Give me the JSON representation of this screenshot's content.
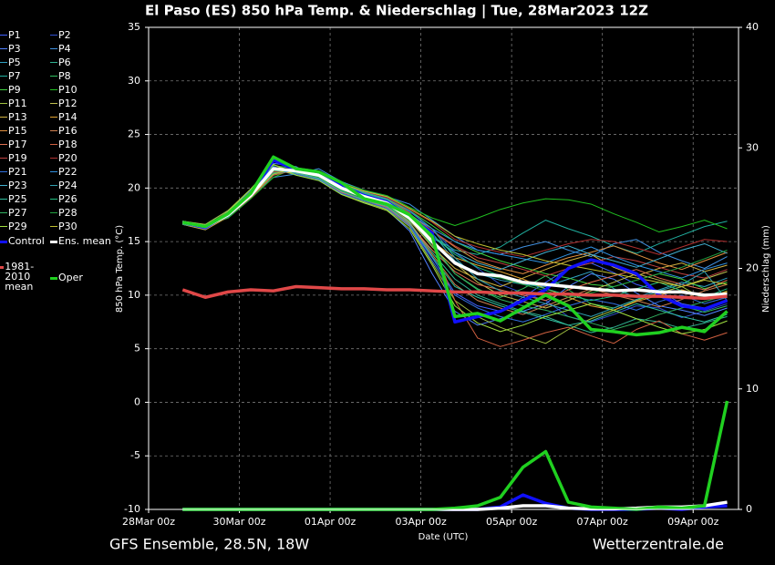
{
  "chart_data": {
    "type": "line",
    "title": "El Paso  (ES)  850 hPa Temp. & Niederschlag | Tue, 28Mar2023 12Z",
    "ylabel": "850 hPa Temp. (°C)",
    "y2label": "Niederschlag (mm)",
    "xlabel": "Date (UTC)",
    "footer_left": "GFS Ensemble, 28.5N, 18W",
    "footer_right": "Wetterzentrale.de",
    "grid": true,
    "xlim": [
      0,
      13
    ],
    "ylim": [
      -10,
      35
    ],
    "y2lim": [
      0,
      40
    ],
    "xticks": [
      {
        "value": 0,
        "label": "28Mar 00z"
      },
      {
        "value": 2,
        "label": "30Mar 00z"
      },
      {
        "value": 4,
        "label": "01Apr 00z"
      },
      {
        "value": 6,
        "label": "03Apr 00z"
      },
      {
        "value": 8,
        "label": "05Apr 00z"
      },
      {
        "value": 10,
        "label": "07Apr 00z"
      },
      {
        "value": 12,
        "label": "09Apr 00z"
      }
    ],
    "yticks": [
      -10,
      -5,
      0,
      5,
      10,
      15,
      20,
      25,
      30,
      35
    ],
    "y2ticks": [
      0,
      10,
      20,
      30,
      40
    ],
    "x": [
      0.75,
      1.25,
      1.75,
      2.25,
      2.75,
      3.25,
      3.75,
      4.25,
      4.75,
      5.25,
      5.75,
      6.25,
      6.75,
      7.25,
      7.75,
      8.25,
      8.75,
      9.25,
      9.75,
      10.25,
      10.75,
      11.25,
      11.75,
      12.25,
      12.75
    ],
    "series": [
      {
        "name": "P1",
        "color": "#4060ff",
        "values": [
          16.7,
          16.2,
          17.8,
          19.8,
          22.0,
          21.4,
          21.0,
          19.6,
          18.9,
          18.2,
          16.5,
          13.5,
          10.2,
          9.0,
          8.5,
          9.8,
          11.2,
          12.5,
          13.0,
          12.1,
          11.0,
          10.4,
          9.2,
          8.8,
          9.5
        ]
      },
      {
        "name": "P2",
        "color": "#3050d0",
        "values": [
          16.9,
          16.5,
          17.2,
          19.0,
          21.2,
          21.9,
          21.5,
          20.3,
          19.5,
          19.0,
          17.8,
          16.2,
          14.0,
          12.5,
          11.0,
          10.2,
          9.5,
          8.0,
          7.5,
          8.2,
          9.0,
          8.8,
          7.9,
          8.5,
          9.2
        ]
      },
      {
        "name": "P3",
        "color": "#5080ff",
        "values": [
          16.6,
          16.1,
          17.6,
          19.5,
          22.3,
          22.0,
          20.8,
          19.8,
          19.0,
          18.0,
          16.0,
          12.0,
          8.5,
          7.2,
          7.8,
          8.5,
          9.2,
          10.8,
          12.0,
          11.5,
          10.2,
          9.0,
          8.6,
          8.1,
          8.8
        ]
      },
      {
        "name": "P4",
        "color": "#4090e0",
        "values": [
          16.8,
          16.6,
          17.9,
          19.2,
          21.0,
          21.3,
          21.8,
          20.6,
          19.8,
          19.2,
          18.5,
          17.0,
          15.5,
          14.2,
          13.8,
          14.5,
          15.0,
          14.2,
          13.6,
          14.8,
          15.2,
          14.0,
          13.2,
          12.5,
          13.6
        ]
      },
      {
        "name": "P5",
        "color": "#30a0c0",
        "values": [
          16.7,
          16.3,
          17.4,
          19.1,
          21.4,
          21.7,
          21.1,
          19.9,
          19.1,
          18.8,
          17.5,
          15.8,
          13.2,
          12.0,
          11.4,
          11.0,
          10.8,
          11.5,
          12.2,
          10.6,
          9.8,
          10.5,
          11.2,
          10.8,
          11.6
        ]
      },
      {
        "name": "P6",
        "color": "#30b090",
        "values": [
          16.9,
          16.4,
          17.3,
          19.6,
          21.8,
          21.2,
          20.7,
          19.5,
          18.6,
          18.1,
          16.8,
          14.0,
          11.5,
          10.0,
          9.2,
          8.5,
          8.0,
          7.2,
          6.5,
          7.0,
          7.8,
          7.5,
          6.9,
          7.4,
          8.0
        ]
      },
      {
        "name": "P7",
        "color": "#20b0a0",
        "values": [
          16.8,
          16.5,
          17.7,
          19.4,
          21.6,
          21.5,
          21.3,
          20.2,
          19.4,
          18.7,
          17.4,
          15.5,
          14.2,
          13.8,
          14.5,
          15.8,
          17.0,
          16.2,
          15.5,
          14.6,
          13.9,
          14.8,
          15.6,
          16.4,
          16.9
        ]
      },
      {
        "name": "P8",
        "color": "#30c060",
        "values": [
          16.6,
          16.2,
          17.5,
          19.7,
          22.1,
          21.8,
          21.0,
          19.7,
          18.8,
          18.3,
          16.9,
          14.8,
          12.0,
          10.5,
          9.8,
          10.6,
          11.8,
          10.5,
          9.2,
          8.8,
          9.6,
          10.2,
          9.0,
          8.4,
          9.0
        ]
      },
      {
        "name": "P9",
        "color": "#40d040",
        "values": [
          16.8,
          16.3,
          17.6,
          19.3,
          21.3,
          21.6,
          21.4,
          20.4,
          19.6,
          18.9,
          17.9,
          16.5,
          15.0,
          14.0,
          13.2,
          12.6,
          12.0,
          11.6,
          11.0,
          10.8,
          11.4,
          12.0,
          11.5,
          10.6,
          11.2
        ]
      },
      {
        "name": "P10",
        "color": "#20c020",
        "values": [
          16.7,
          16.5,
          17.2,
          19.0,
          21.0,
          21.9,
          21.6,
          20.5,
          19.8,
          19.3,
          18.2,
          17.2,
          16.5,
          17.2,
          18.0,
          18.6,
          19.0,
          18.9,
          18.5,
          17.6,
          16.8,
          15.9,
          16.4,
          17.0,
          16.2
        ]
      },
      {
        "name": "P11",
        "color": "#a0c040",
        "values": [
          16.9,
          16.6,
          17.9,
          19.9,
          22.2,
          21.4,
          20.9,
          19.4,
          18.7,
          18.0,
          16.4,
          13.0,
          9.5,
          8.0,
          7.0,
          6.2,
          5.5,
          6.8,
          7.8,
          8.6,
          9.5,
          10.2,
          10.8,
          9.6,
          10.4
        ]
      },
      {
        "name": "P12",
        "color": "#c0c050",
        "values": [
          16.8,
          16.3,
          17.4,
          19.2,
          21.5,
          21.7,
          21.2,
          20.1,
          19.3,
          18.6,
          17.3,
          15.2,
          13.0,
          11.2,
          10.0,
          9.4,
          8.8,
          9.5,
          10.4,
          11.2,
          12.0,
          11.4,
          10.8,
          11.5,
          12.2
        ]
      },
      {
        "name": "P13",
        "color": "#d0b040",
        "values": [
          16.6,
          16.1,
          17.3,
          19.4,
          21.7,
          21.3,
          20.8,
          19.9,
          19.1,
          18.4,
          17.0,
          14.5,
          12.5,
          11.5,
          10.8,
          11.6,
          12.4,
          13.2,
          13.8,
          12.6,
          11.8,
          12.5,
          13.0,
          12.2,
          12.8
        ]
      },
      {
        "name": "P14",
        "color": "#e0a030",
        "values": [
          16.7,
          16.4,
          17.8,
          19.6,
          21.9,
          21.6,
          21.0,
          19.8,
          19.0,
          18.5,
          17.1,
          15.0,
          13.5,
          12.8,
          12.2,
          11.5,
          10.6,
          9.8,
          9.0,
          8.6,
          9.4,
          10.0,
          10.5,
          9.9,
          10.3
        ]
      },
      {
        "name": "P15",
        "color": "#e09040",
        "values": [
          16.9,
          16.5,
          17.6,
          19.3,
          21.4,
          21.8,
          21.3,
          20.2,
          19.5,
          18.8,
          17.6,
          16.0,
          14.5,
          13.2,
          12.5,
          12.0,
          12.8,
          13.5,
          14.0,
          14.6,
          13.8,
          13.0,
          12.4,
          13.2,
          14.0
        ]
      },
      {
        "name": "P16",
        "color": "#d08050",
        "values": [
          16.8,
          16.2,
          17.5,
          19.5,
          21.6,
          21.5,
          21.1,
          20.0,
          19.2,
          18.5,
          16.8,
          13.8,
          11.0,
          9.5,
          8.8,
          8.2,
          9.0,
          9.8,
          10.6,
          10.0,
          9.5,
          8.9,
          9.6,
          10.4,
          11.0
        ]
      },
      {
        "name": "P17",
        "color": "#e07050",
        "values": [
          16.7,
          16.4,
          17.7,
          19.7,
          21.8,
          21.4,
          20.9,
          19.6,
          18.9,
          18.2,
          16.6,
          14.2,
          12.2,
          11.0,
          10.5,
          10.0,
          9.5,
          10.5,
          11.2,
          11.8,
          12.4,
          11.6,
          11.0,
          10.5,
          11.4
        ]
      },
      {
        "name": "P18",
        "color": "#d06040",
        "values": [
          16.8,
          16.5,
          17.3,
          19.1,
          21.2,
          21.7,
          21.5,
          20.3,
          19.6,
          19.0,
          17.7,
          14.8,
          9.5,
          6.0,
          5.2,
          5.8,
          6.5,
          7.0,
          6.2,
          5.5,
          6.8,
          7.6,
          6.4,
          5.8,
          6.5
        ]
      },
      {
        "name": "P19",
        "color": "#c04040",
        "values": [
          16.6,
          16.3,
          17.6,
          19.4,
          21.5,
          21.6,
          21.2,
          20.1,
          19.3,
          18.7,
          17.4,
          16.0,
          14.6,
          13.5,
          13.0,
          12.4,
          11.8,
          12.5,
          13.0,
          13.6,
          13.2,
          12.6,
          12.0,
          11.6,
          12.4
        ]
      },
      {
        "name": "P20",
        "color": "#b03030",
        "values": [
          16.9,
          16.4,
          17.4,
          19.2,
          21.3,
          21.8,
          21.4,
          20.4,
          19.7,
          19.1,
          18.0,
          16.8,
          15.2,
          14.5,
          14.0,
          13.6,
          14.2,
          14.8,
          15.2,
          15.0,
          14.4,
          13.8,
          14.5,
          15.2,
          15.0
        ]
      },
      {
        "name": "P21",
        "color": "#3070e0",
        "values": [
          16.7,
          16.2,
          17.8,
          19.8,
          22.0,
          21.3,
          20.8,
          19.5,
          18.8,
          18.1,
          16.5,
          13.2,
          10.0,
          8.8,
          8.0,
          7.5,
          8.2,
          9.0,
          9.6,
          9.2,
          8.6,
          9.4,
          10.0,
          9.2,
          9.8
        ]
      },
      {
        "name": "P22",
        "color": "#3090e0",
        "values": [
          16.8,
          16.5,
          17.5,
          19.3,
          21.4,
          21.6,
          21.3,
          20.2,
          19.4,
          18.8,
          17.5,
          16.2,
          15.0,
          14.2,
          13.8,
          13.4,
          13.0,
          13.8,
          14.5,
          13.6,
          12.8,
          12.2,
          11.6,
          12.4,
          13.0
        ]
      },
      {
        "name": "P23",
        "color": "#40b0d0",
        "values": [
          16.6,
          16.3,
          17.6,
          19.5,
          21.7,
          21.5,
          21.0,
          19.9,
          19.1,
          18.5,
          17.1,
          15.4,
          14.0,
          13.0,
          12.4,
          13.2,
          14.0,
          14.6,
          13.8,
          13.2,
          12.6,
          13.4,
          14.2,
          14.8,
          13.9
        ]
      },
      {
        "name": "P24",
        "color": "#30a0b0",
        "values": [
          16.9,
          16.4,
          17.3,
          19.2,
          21.3,
          21.8,
          21.4,
          20.3,
          19.6,
          19.0,
          17.9,
          16.2,
          13.5,
          11.5,
          10.4,
          9.8,
          9.2,
          8.6,
          8.0,
          8.8,
          9.6,
          10.4,
          11.0,
          12.2,
          9.5
        ]
      },
      {
        "name": "P25",
        "color": "#30c0a0",
        "values": [
          16.7,
          16.2,
          17.7,
          19.6,
          21.9,
          21.4,
          20.9,
          19.7,
          18.9,
          18.3,
          16.7,
          13.6,
          10.8,
          9.8,
          9.0,
          8.4,
          7.8,
          7.2,
          7.6,
          8.4,
          9.2,
          8.6,
          8.0,
          7.5,
          8.2
        ]
      },
      {
        "name": "P26",
        "color": "#20c080",
        "values": [
          16.8,
          16.5,
          17.4,
          19.3,
          21.4,
          21.7,
          21.3,
          20.2,
          19.5,
          18.9,
          17.6,
          15.6,
          13.8,
          12.6,
          11.8,
          11.2,
          10.6,
          10.0,
          9.5,
          9.9,
          10.6,
          11.2,
          10.4,
          9.8,
          10.6
        ]
      },
      {
        "name": "P27",
        "color": "#30b060",
        "values": [
          16.6,
          16.3,
          17.6,
          19.4,
          21.6,
          21.6,
          21.1,
          20.0,
          19.2,
          18.6,
          17.2,
          14.6,
          12.0,
          10.6,
          9.6,
          9.0,
          8.6,
          8.0,
          7.4,
          6.8,
          7.4,
          8.2,
          8.8,
          9.4,
          10.0
        ]
      },
      {
        "name": "P28",
        "color": "#20a040",
        "values": [
          16.9,
          16.4,
          17.5,
          19.5,
          21.8,
          21.5,
          21.0,
          19.8,
          19.0,
          18.4,
          17.0,
          15.0,
          13.0,
          12.0,
          11.6,
          11.0,
          10.4,
          9.8,
          10.2,
          10.8,
          11.4,
          12.0,
          12.6,
          13.4,
          14.2
        ]
      },
      {
        "name": "P29",
        "color": "#a0e040",
        "values": [
          16.7,
          16.2,
          17.8,
          19.9,
          22.2,
          21.2,
          20.7,
          19.4,
          18.6,
          17.9,
          16.2,
          12.8,
          9.0,
          7.4,
          6.6,
          7.2,
          8.0,
          8.6,
          9.2,
          8.6,
          7.8,
          7.0,
          6.4,
          6.8,
          7.6
        ]
      },
      {
        "name": "P30",
        "color": "#c0c030",
        "values": [
          16.8,
          16.5,
          17.4,
          19.2,
          21.3,
          21.9,
          21.5,
          20.4,
          19.7,
          19.2,
          18.1,
          16.9,
          15.5,
          14.8,
          14.2,
          13.8,
          13.2,
          12.8,
          12.4,
          12.0,
          11.6,
          11.2,
          10.8,
          11.4,
          11.0
        ]
      },
      {
        "name": "Control",
        "color": "#1010ff",
        "width": 3.5,
        "values": [
          16.8,
          16.3,
          17.6,
          19.4,
          22.6,
          21.7,
          21.3,
          20.2,
          19.3,
          18.7,
          17.3,
          15.8,
          7.5,
          8.0,
          8.5,
          9.5,
          10.5,
          12.5,
          13.3,
          12.8,
          12.0,
          10.0,
          9.0,
          8.7,
          9.5
        ],
        "precip": [
          0,
          0,
          0,
          0,
          0,
          0,
          0,
          0,
          0,
          0,
          0,
          0,
          0,
          0,
          0.2,
          1.2,
          0.5,
          0.1,
          0,
          0,
          0,
          0.1,
          0,
          0.2,
          0.3
        ]
      },
      {
        "name": "Ens. mean",
        "color": "#ffffff",
        "width": 3.5,
        "values": [
          16.8,
          16.4,
          17.5,
          19.3,
          21.8,
          21.6,
          21.2,
          20.0,
          19.2,
          18.6,
          17.2,
          15.0,
          13.0,
          12.0,
          11.8,
          11.2,
          11.0,
          10.8,
          10.6,
          10.4,
          10.5,
          10.3,
          10.3,
          10.0,
          10.1
        ],
        "precip": [
          0,
          0,
          0,
          0,
          0,
          0,
          0,
          0,
          0,
          0,
          0,
          0,
          0,
          0,
          0.1,
          0.3,
          0.3,
          0.1,
          0.05,
          0.05,
          0.1,
          0.2,
          0.2,
          0.3,
          0.6
        ]
      },
      {
        "name": "1981-2010 mean",
        "color": "#e04848",
        "width": 3.5,
        "values": [
          10.5,
          9.8,
          10.3,
          10.5,
          10.4,
          10.8,
          10.7,
          10.6,
          10.6,
          10.5,
          10.5,
          10.4,
          10.3,
          10.3,
          10.2,
          10.2,
          10.1,
          10.1,
          10.0,
          10.0,
          9.9,
          9.9,
          9.8,
          9.7,
          9.9
        ]
      },
      {
        "name": "Oper",
        "color": "#20d020",
        "width": 3.5,
        "values": [
          16.8,
          16.4,
          17.6,
          19.5,
          22.9,
          21.8,
          21.5,
          20.5,
          19.0,
          18.5,
          17.5,
          15.5,
          8.0,
          8.3,
          7.6,
          8.8,
          10.0,
          9.0,
          6.8,
          6.6,
          6.3,
          6.5,
          7.0,
          6.6,
          8.5
        ],
        "precip": [
          0,
          0,
          0,
          0,
          0,
          0,
          0,
          0,
          0,
          0,
          0,
          0,
          0.1,
          0.3,
          1.0,
          3.5,
          4.8,
          0.6,
          0.2,
          0.1,
          0,
          0.2,
          0.1,
          0.3,
          9.0
        ]
      }
    ]
  }
}
